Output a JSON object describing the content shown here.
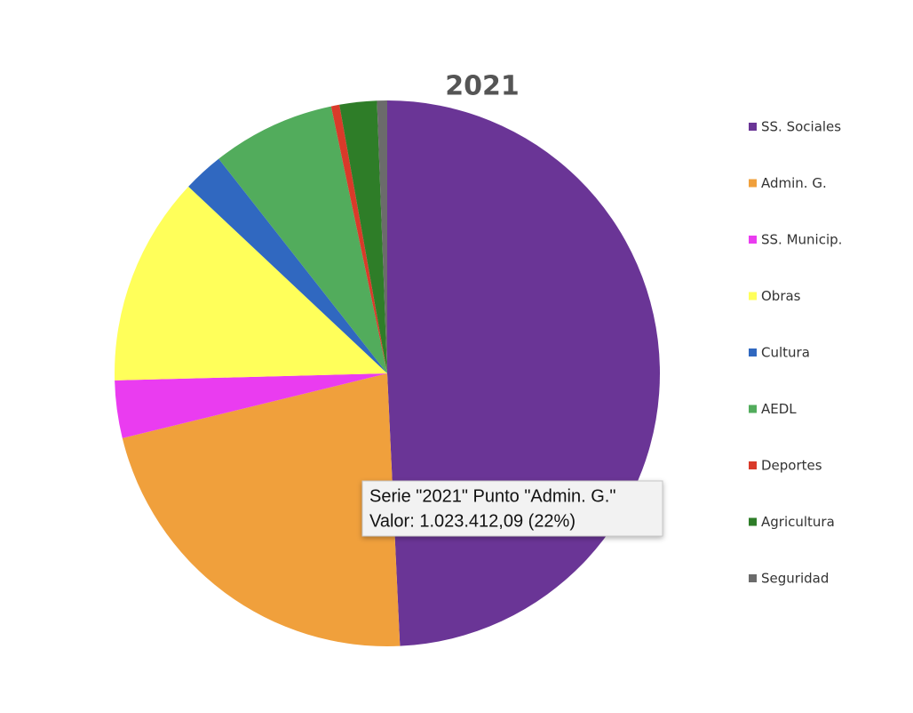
{
  "chart_data": {
    "type": "pie",
    "title": "2021",
    "categories": [
      "SS. Sociales",
      "Admin. G.",
      "SS. Municip.",
      "Obras",
      "Cultura",
      "AEDL",
      "Deportes",
      "Agricultura",
      "Seguridad"
    ],
    "values": [
      2299000,
      1023412.09,
      159000,
      579000,
      112000,
      341000,
      23000,
      103000,
      28000
    ],
    "colors": [
      "#6a3596",
      "#f0a03c",
      "#ea3cf0",
      "#ffff5a",
      "#3068c0",
      "#52ac5c",
      "#d93a2a",
      "#2e7d28",
      "#6b6b6b"
    ],
    "legend": "right",
    "tooltip": [
      "Serie \"2021\" Punto \"Admin. G.\"",
      "Valor: 1.023.412,09 (22%)"
    ]
  }
}
